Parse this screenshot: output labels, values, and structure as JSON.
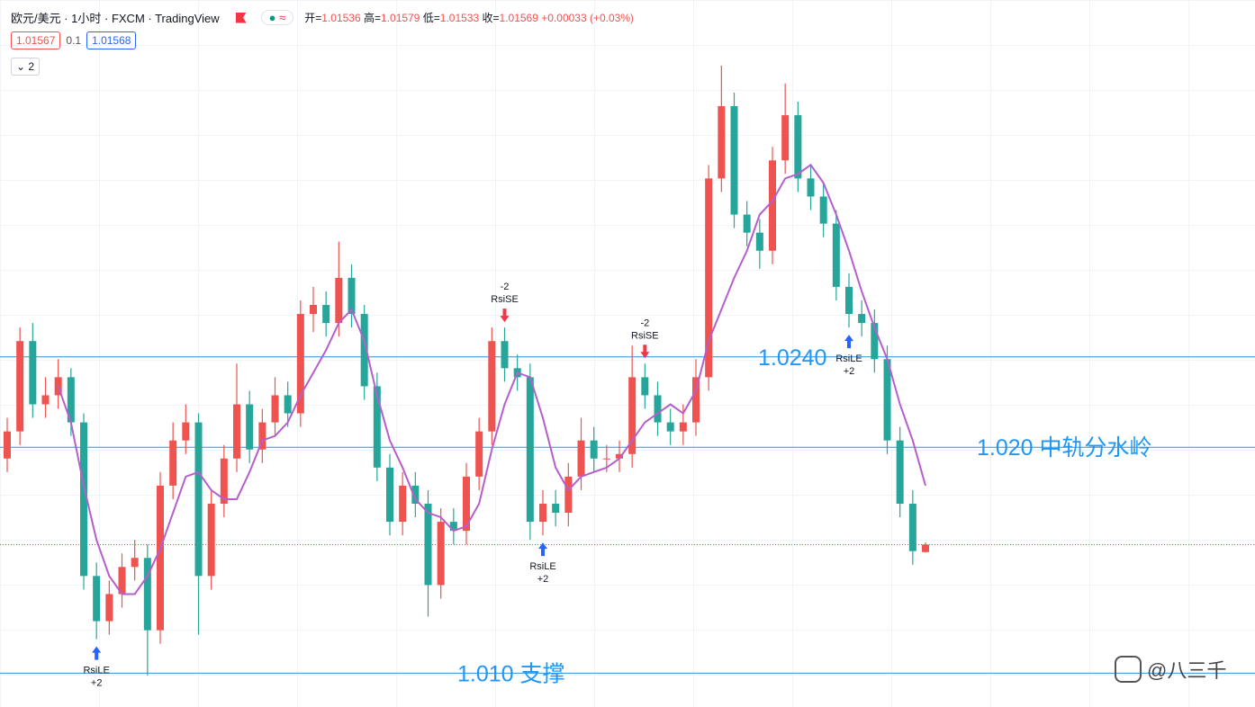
{
  "header": {
    "symbol": "欧元/美元 · 1小时 · FXCM · TradingView",
    "ohlc_labels": [
      "开=",
      "高=",
      "低=",
      "收="
    ],
    "change": "+0.00033 (+0.03%)",
    "sell": "1.01567",
    "spread": "0.1",
    "buy": "1.01568",
    "indicators": "2"
  },
  "chart_data": {
    "type": "candlestick",
    "open": [
      1.0195,
      1.0207,
      1.0247,
      1.0219,
      1.0223,
      1.0231,
      1.0211,
      1.0143,
      1.0123,
      1.0135,
      1.0147,
      1.0151,
      1.0119,
      1.0183,
      1.0203,
      1.0211,
      1.0143,
      1.0175,
      1.0195,
      1.0219,
      1.0199,
      1.0211,
      1.0223,
      1.0215,
      1.0259,
      1.0263,
      1.0255,
      1.0275,
      1.0259,
      1.0227,
      1.0191,
      1.0167,
      1.0183,
      1.0175,
      1.0139,
      1.0167,
      1.0163,
      1.0187,
      1.0207,
      1.0247,
      1.0235,
      1.0231,
      1.0167,
      1.0175,
      1.0171,
      1.0187,
      1.0203,
      1.0195,
      1.0195,
      1.0197,
      1.0231,
      1.0223,
      1.0211,
      1.0207,
      1.0211,
      1.0231,
      1.0319,
      1.0351,
      1.0303,
      1.0295,
      1.0287,
      1.0327,
      1.0347,
      1.0319,
      1.0311,
      1.0299,
      1.0271,
      1.0259,
      1.0255,
      1.0239,
      1.0203,
      1.0175,
      1.01536
    ],
    "high": [
      1.0213,
      1.0253,
      1.0255,
      1.0231,
      1.0239,
      1.0235,
      1.0215,
      1.0149,
      1.0141,
      1.0153,
      1.0159,
      1.0157,
      1.0189,
      1.0211,
      1.0219,
      1.0215,
      1.0181,
      1.0201,
      1.0237,
      1.0225,
      1.0217,
      1.0231,
      1.0229,
      1.0265,
      1.0271,
      1.0269,
      1.0291,
      1.0281,
      1.0263,
      1.0233,
      1.0197,
      1.0189,
      1.0189,
      1.0181,
      1.0173,
      1.0173,
      1.0193,
      1.0213,
      1.0253,
      1.0253,
      1.0241,
      1.0237,
      1.0181,
      1.0181,
      1.0193,
      1.0213,
      1.0209,
      1.0201,
      1.0203,
      1.0245,
      1.0237,
      1.0229,
      1.0217,
      1.0219,
      1.0239,
      1.0325,
      1.0369,
      1.0357,
      1.0309,
      1.0301,
      1.0333,
      1.0361,
      1.0353,
      1.0325,
      1.0317,
      1.0305,
      1.0277,
      1.0265,
      1.0261,
      1.0245,
      1.0209,
      1.0181,
      1.01579
    ],
    "low": [
      1.0189,
      1.0201,
      1.0213,
      1.0213,
      1.0217,
      1.0205,
      1.0137,
      1.0115,
      1.0117,
      1.0129,
      1.0141,
      1.0099,
      1.0113,
      1.0177,
      1.0197,
      1.0117,
      1.0137,
      1.0169,
      1.0189,
      1.0193,
      1.0193,
      1.0205,
      1.0209,
      1.0209,
      1.0251,
      1.0249,
      1.0249,
      1.0253,
      1.0221,
      1.0185,
      1.0161,
      1.0161,
      1.0169,
      1.0125,
      1.0133,
      1.0157,
      1.0157,
      1.0181,
      1.0201,
      1.0229,
      1.0225,
      1.0159,
      1.0161,
      1.0165,
      1.0165,
      1.0181,
      1.0189,
      1.0189,
      1.0189,
      1.0191,
      1.0217,
      1.0205,
      1.0201,
      1.0201,
      1.0205,
      1.0225,
      1.0313,
      1.0297,
      1.0289,
      1.0279,
      1.0281,
      1.0321,
      1.0313,
      1.0305,
      1.0293,
      1.0265,
      1.0253,
      1.0249,
      1.0233,
      1.0197,
      1.0169,
      1.0148,
      1.01533
    ],
    "close": [
      1.0207,
      1.0247,
      1.0219,
      1.0223,
      1.0231,
      1.0211,
      1.0143,
      1.0123,
      1.0135,
      1.0147,
      1.0151,
      1.0119,
      1.0183,
      1.0203,
      1.0211,
      1.0143,
      1.0175,
      1.0195,
      1.0219,
      1.0199,
      1.0211,
      1.0223,
      1.0215,
      1.0259,
      1.0263,
      1.0255,
      1.0275,
      1.0259,
      1.0227,
      1.0191,
      1.0167,
      1.0183,
      1.0175,
      1.0139,
      1.0167,
      1.0163,
      1.0187,
      1.0207,
      1.0247,
      1.0235,
      1.0231,
      1.0167,
      1.0175,
      1.0171,
      1.0187,
      1.0203,
      1.0195,
      1.0195,
      1.0197,
      1.0231,
      1.0223,
      1.0211,
      1.0207,
      1.0211,
      1.0231,
      1.0319,
      1.0351,
      1.0303,
      1.0295,
      1.0287,
      1.0327,
      1.0347,
      1.0319,
      1.0311,
      1.0299,
      1.0271,
      1.0259,
      1.0255,
      1.0239,
      1.0203,
      1.0175,
      1.0154,
      1.01569
    ],
    "up_color": "#ef5350",
    "down_color": "#26a69a",
    "ma": {
      "color": "#b65ecb",
      "values": [
        null,
        null,
        null,
        null,
        1.0227,
        1.0211,
        1.0183,
        1.0159,
        1.0143,
        1.0135,
        1.0135,
        1.0143,
        1.0155,
        1.0171,
        1.0187,
        1.0189,
        1.0181,
        1.0177,
        1.0177,
        1.0189,
        1.0203,
        1.0205,
        1.0211,
        1.0223,
        1.0233,
        1.0243,
        1.0255,
        1.0261,
        1.0247,
        1.0223,
        1.0203,
        1.0191,
        1.0177,
        1.0171,
        1.0169,
        1.0163,
        1.0165,
        1.0175,
        1.0199,
        1.0219,
        1.0233,
        1.0231,
        1.0213,
        1.0191,
        1.0181,
        1.0187,
        1.0189,
        1.0191,
        1.0195,
        1.0203,
        1.0211,
        1.0215,
        1.0219,
        1.0215,
        1.0225,
        1.0247,
        1.0261,
        1.0275,
        1.0287,
        1.0303,
        1.0309,
        1.0319,
        1.0321,
        1.0325,
        1.0317,
        1.0303,
        1.0287,
        1.0269,
        1.0253,
        1.0239,
        1.0219,
        1.0203,
        1.0183
      ]
    },
    "hlines": [
      {
        "value": 1.024,
        "label": "1.0240"
      },
      {
        "value": 1.02,
        "label": "1.020 中轨分水岭"
      },
      {
        "value": 1.01,
        "label": "1.010 支撑"
      }
    ],
    "hline_color": "#2f8fd8",
    "signals": [
      {
        "label": "RsiLE",
        "qty": "+2",
        "index": 7
      },
      {
        "label": "RsiSE",
        "qty": -2,
        "index": 39
      },
      {
        "label": "RsiLE",
        "qty": "+2",
        "index": 42
      },
      {
        "label": "RsiSE",
        "qty": -2,
        "index": 50
      },
      {
        "label": "RsiLE",
        "qty": "+2",
        "index": 66
      }
    ],
    "ylim": [
      1.0085,
      1.0398
    ]
  },
  "watermark": "@八三千"
}
